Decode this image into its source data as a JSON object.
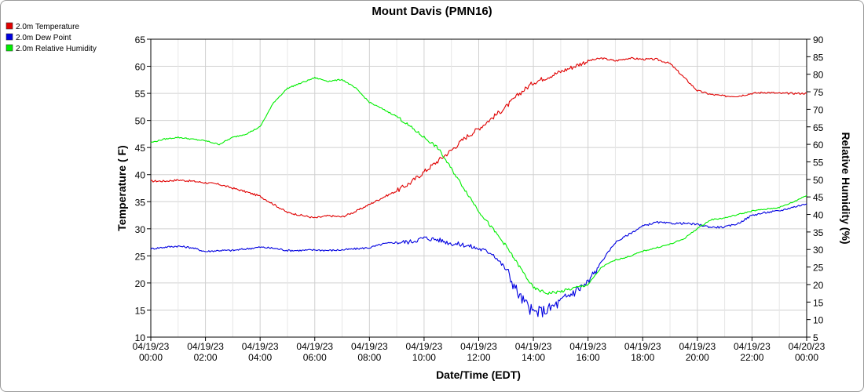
{
  "chart_data": {
    "type": "line",
    "title": "Mount Davis (PMN16)",
    "xlabel": "Date/Time (EDT)",
    "ylabel_left": "Temperature ( F)",
    "ylabel_right": "Relative Humidity (%)",
    "ylim_left": [
      10,
      65
    ],
    "ylim_right": [
      5,
      90
    ],
    "xlim_hours": [
      0,
      24
    ],
    "y_ticks_left": [
      "10",
      "15",
      "20",
      "25",
      "30",
      "35",
      "40",
      "45",
      "50",
      "55",
      "60",
      "65"
    ],
    "y_ticks_right": [
      "5",
      "10",
      "15",
      "20",
      "25",
      "30",
      "35",
      "40",
      "45",
      "50",
      "55",
      "60",
      "65",
      "70",
      "75",
      "80",
      "85",
      "90"
    ],
    "x_ticks": [
      {
        "date": "04/19/23",
        "time": "00:00"
      },
      {
        "date": "04/19/23",
        "time": "02:00"
      },
      {
        "date": "04/19/23",
        "time": "04:00"
      },
      {
        "date": "04/19/23",
        "time": "06:00"
      },
      {
        "date": "04/19/23",
        "time": "08:00"
      },
      {
        "date": "04/19/23",
        "time": "10:00"
      },
      {
        "date": "04/19/23",
        "time": "12:00"
      },
      {
        "date": "04/19/23",
        "time": "14:00"
      },
      {
        "date": "04/19/23",
        "time": "16:00"
      },
      {
        "date": "04/19/23",
        "time": "18:00"
      },
      {
        "date": "04/19/23",
        "time": "20:00"
      },
      {
        "date": "04/19/23",
        "time": "22:00"
      },
      {
        "date": "04/20/23",
        "time": "00:00"
      }
    ],
    "grid": true,
    "legend_position": "top-left",
    "series": [
      {
        "name": "2.0m Temperature",
        "color": "#e00000",
        "axis": "left",
        "x": [
          0,
          0.5,
          1,
          1.5,
          2,
          2.5,
          3,
          3.5,
          4,
          4.5,
          5,
          5.5,
          6,
          6.5,
          7,
          7.5,
          8,
          8.5,
          9,
          9.5,
          10,
          10.5,
          11,
          11.5,
          12,
          12.5,
          13,
          13.5,
          14,
          14.5,
          15,
          15.5,
          16,
          16.5,
          17,
          17.5,
          18,
          18.5,
          19,
          19.5,
          20,
          20.5,
          21,
          21.5,
          22,
          22.5,
          23,
          23.5,
          24
        ],
        "y": [
          38.8,
          38.8,
          39.0,
          38.8,
          38.5,
          38.2,
          37.5,
          36.8,
          36.0,
          34.5,
          33.0,
          32.5,
          32.0,
          32.4,
          32.2,
          33.2,
          34.5,
          35.8,
          37.0,
          38.5,
          40.5,
          42.5,
          44.5,
          46.8,
          48.5,
          50.5,
          52.5,
          55.0,
          57.0,
          58.0,
          59.0,
          60.0,
          61.0,
          61.5,
          61.0,
          61.5,
          61.3,
          61.3,
          60.5,
          58.0,
          55.5,
          54.8,
          54.5,
          54.5,
          55.0,
          55.2,
          55.0,
          55.0,
          55.0
        ]
      },
      {
        "name": "2.0m Dew Point",
        "color": "#0000e0",
        "axis": "left",
        "x": [
          0,
          0.5,
          1,
          1.5,
          2,
          2.5,
          3,
          3.5,
          4,
          4.5,
          5,
          5.5,
          6,
          6.5,
          7,
          7.5,
          8,
          8.5,
          9,
          9.5,
          10,
          10.5,
          11,
          11.5,
          12,
          12.5,
          13,
          13.5,
          14,
          14.5,
          15,
          15.5,
          16,
          16.5,
          17,
          17.5,
          18,
          18.5,
          19,
          19.5,
          20,
          20.5,
          21,
          21.5,
          22,
          22.5,
          23,
          23.5,
          24
        ],
        "y": [
          26.3,
          26.6,
          26.8,
          26.5,
          25.8,
          26.0,
          26.0,
          26.3,
          26.6,
          26.4,
          26.0,
          26.0,
          26.1,
          26.0,
          26.1,
          26.3,
          26.5,
          27.2,
          27.5,
          27.6,
          28.3,
          28.0,
          27.3,
          27.0,
          26.3,
          25.5,
          22.5,
          17.5,
          14.5,
          15.0,
          16.5,
          18.5,
          20.0,
          24.0,
          27.5,
          29.0,
          30.5,
          31.2,
          31.0,
          31.0,
          30.8,
          30.3,
          30.3,
          31.0,
          32.5,
          33.0,
          33.3,
          34.0,
          34.6
        ]
      },
      {
        "name": "2.0m Relative Humidity",
        "color": "#00ee00",
        "axis": "right",
        "x": [
          0,
          0.5,
          1,
          1.5,
          2,
          2.5,
          3,
          3.5,
          4,
          4.5,
          5,
          5.5,
          6,
          6.5,
          7,
          7.5,
          8,
          8.5,
          9,
          9.5,
          10,
          10.5,
          11,
          11.5,
          12,
          12.5,
          13,
          13.5,
          14,
          14.5,
          15,
          15.5,
          16,
          16.5,
          17,
          17.5,
          18,
          18.5,
          19,
          19.5,
          20,
          20.5,
          21,
          21.5,
          22,
          22.5,
          23,
          23.5,
          24
        ],
        "y": [
          60.5,
          61.5,
          62.0,
          61.5,
          61.0,
          60.0,
          62.0,
          63.0,
          65.0,
          72.0,
          76.0,
          77.5,
          79.0,
          78.0,
          78.5,
          76.0,
          72.0,
          70.0,
          68.0,
          65.0,
          62.0,
          59.0,
          53.0,
          47.0,
          41.0,
          36.0,
          31.0,
          25.0,
          19.0,
          17.5,
          18.0,
          19.0,
          20.0,
          25.0,
          27.0,
          28.0,
          29.5,
          30.5,
          31.5,
          33.0,
          36.0,
          38.5,
          39.0,
          40.0,
          41.0,
          41.5,
          42.0,
          43.5,
          45.5
        ]
      }
    ]
  }
}
